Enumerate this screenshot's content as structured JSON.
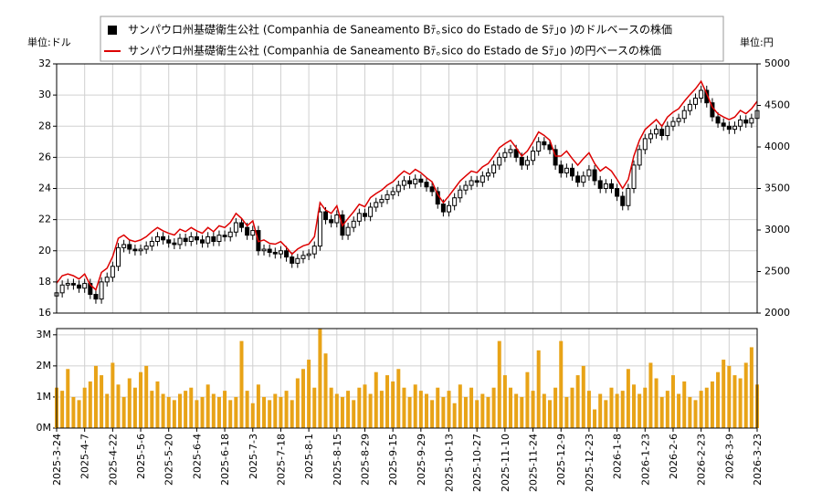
{
  "chart_data": [
    {
      "type": "candlestick",
      "ylabel": "単位:ドル",
      "y2label": "単位:円",
      "ylim": [
        16,
        32
      ],
      "yticks": [
        16,
        18,
        20,
        22,
        24,
        26,
        28,
        30,
        32
      ],
      "y2lim": [
        2000,
        5000
      ],
      "y2ticks": [
        2000,
        2500,
        3000,
        3500,
        4000,
        4500,
        5000
      ],
      "grid": true,
      "series": [
        {
          "name": "サンパウロ州基礎衛生公社 (Companhia de Saneamento Bﾃ｡sico do Estado de Sﾃ｣o )のドルベースの株価",
          "color": "#000000",
          "open": [
            17.1,
            17.3,
            17.8,
            17.9,
            17.8,
            17.6,
            17.9,
            17.2,
            16.9,
            18.0,
            18.3,
            19.0,
            20.2,
            20.4,
            20.1,
            20.0,
            20.1,
            20.3,
            20.6,
            20.9,
            20.7,
            20.5,
            20.4,
            20.8,
            20.6,
            20.9,
            20.7,
            20.5,
            20.9,
            20.6,
            21.0,
            20.9,
            21.2,
            21.8,
            21.5,
            21.0,
            21.3,
            20.0,
            20.1,
            19.9,
            19.8,
            20.0,
            19.6,
            19.2,
            19.5,
            19.7,
            19.8,
            20.3,
            22.5,
            22.0,
            21.8,
            22.3,
            21.0,
            21.5,
            21.9,
            22.4,
            22.2,
            22.8,
            23.1,
            23.3,
            23.6,
            23.8,
            24.2,
            24.5,
            24.3,
            24.6,
            24.4,
            24.1,
            23.8,
            23.0,
            22.5,
            22.9,
            23.4,
            23.9,
            24.2,
            24.5,
            24.4,
            24.8,
            25.0,
            25.5,
            26.0,
            26.3,
            26.5,
            26.0,
            25.5,
            25.8,
            26.4,
            27.0,
            26.8,
            26.5,
            25.5,
            25.0,
            25.3,
            24.8,
            24.4,
            24.8,
            25.2,
            24.5,
            24.0,
            24.3,
            24.0,
            23.5,
            22.9,
            24.0,
            25.5,
            26.5,
            27.2,
            27.5,
            27.8,
            27.4,
            28.0,
            28.3,
            28.5,
            29.0,
            29.4,
            29.8,
            30.3,
            29.5,
            28.6,
            28.2,
            28.0,
            27.8,
            28.0,
            28.4,
            28.2,
            28.5
          ],
          "high": [
            17.6,
            18.1,
            18.2,
            18.2,
            18.1,
            18.2,
            18.2,
            17.5,
            18.3,
            18.6,
            19.3,
            20.5,
            20.7,
            20.7,
            20.4,
            20.4,
            20.6,
            20.9,
            21.2,
            21.2,
            21.0,
            20.8,
            21.1,
            21.1,
            21.2,
            21.2,
            21.0,
            21.2,
            21.2,
            21.3,
            21.3,
            21.5,
            22.1,
            22.1,
            21.8,
            21.6,
            21.6,
            20.4,
            20.4,
            20.2,
            20.3,
            20.3,
            19.9,
            19.8,
            20.0,
            20.1,
            20.6,
            22.8,
            22.8,
            22.3,
            22.6,
            22.6,
            21.8,
            22.2,
            22.7,
            22.7,
            23.1,
            23.4,
            23.6,
            23.9,
            24.1,
            24.5,
            24.8,
            24.8,
            24.9,
            24.9,
            24.7,
            24.4,
            24.1,
            23.3,
            23.2,
            23.7,
            24.2,
            24.5,
            24.8,
            24.8,
            25.1,
            25.3,
            25.8,
            26.3,
            26.6,
            26.8,
            26.8,
            26.3,
            26.1,
            26.7,
            27.3,
            27.3,
            27.1,
            26.8,
            25.8,
            25.6,
            25.6,
            25.1,
            25.1,
            25.5,
            25.5,
            24.8,
            24.6,
            24.6,
            24.3,
            23.8,
            24.3,
            25.8,
            26.8,
            27.5,
            27.8,
            28.1,
            28.1,
            28.3,
            28.6,
            28.8,
            29.3,
            29.7,
            30.1,
            30.6,
            30.6,
            29.8,
            28.9,
            28.5,
            28.3,
            28.3,
            28.7,
            28.7,
            28.8,
            29.3
          ],
          "low": [
            16.8,
            17.0,
            17.5,
            17.5,
            17.3,
            17.3,
            16.9,
            16.6,
            16.6,
            17.7,
            18.0,
            18.7,
            19.9,
            19.8,
            19.7,
            19.7,
            19.8,
            20.0,
            20.3,
            20.4,
            20.2,
            20.1,
            20.1,
            20.3,
            20.3,
            20.4,
            20.2,
            20.2,
            20.3,
            20.3,
            20.6,
            20.6,
            20.9,
            21.2,
            20.7,
            20.7,
            19.7,
            19.7,
            19.6,
            19.5,
            19.5,
            19.3,
            18.9,
            18.9,
            19.2,
            19.4,
            19.5,
            20.0,
            21.7,
            21.5,
            21.5,
            20.7,
            20.7,
            21.2,
            21.6,
            21.9,
            21.9,
            22.5,
            22.8,
            23.0,
            23.3,
            23.5,
            23.9,
            24.0,
            24.0,
            24.1,
            23.8,
            23.5,
            22.7,
            22.2,
            22.2,
            22.6,
            23.1,
            23.6,
            23.9,
            24.1,
            24.1,
            24.5,
            24.7,
            25.2,
            25.7,
            26.0,
            25.7,
            25.2,
            25.2,
            25.5,
            26.1,
            26.5,
            26.2,
            25.2,
            24.7,
            24.7,
            24.5,
            24.1,
            24.1,
            24.5,
            24.2,
            23.7,
            23.7,
            23.7,
            23.2,
            22.6,
            22.6,
            23.7,
            25.2,
            26.2,
            26.9,
            27.2,
            27.1,
            27.1,
            27.7,
            28.0,
            28.2,
            28.7,
            29.1,
            29.5,
            29.2,
            28.3,
            27.9,
            27.7,
            27.5,
            27.5,
            27.7,
            27.9,
            27.9,
            28.2
          ],
          "close": [
            17.3,
            17.8,
            17.9,
            17.8,
            17.6,
            17.9,
            17.2,
            16.9,
            18.0,
            18.3,
            19.0,
            20.2,
            20.4,
            20.1,
            20.0,
            20.1,
            20.3,
            20.6,
            20.9,
            20.7,
            20.5,
            20.4,
            20.8,
            20.6,
            20.9,
            20.7,
            20.5,
            20.9,
            20.6,
            21.0,
            20.9,
            21.2,
            21.8,
            21.5,
            21.0,
            21.3,
            20.0,
            20.1,
            19.9,
            19.8,
            20.0,
            19.6,
            19.2,
            19.5,
            19.7,
            19.8,
            20.3,
            22.5,
            22.0,
            21.8,
            22.3,
            21.0,
            21.5,
            21.9,
            22.4,
            22.2,
            22.8,
            23.1,
            23.3,
            23.6,
            23.8,
            24.2,
            24.5,
            24.3,
            24.6,
            24.4,
            24.1,
            23.8,
            23.0,
            22.5,
            22.9,
            23.4,
            23.9,
            24.2,
            24.5,
            24.4,
            24.8,
            25.0,
            25.5,
            26.0,
            26.3,
            26.5,
            26.0,
            25.5,
            25.8,
            26.4,
            27.0,
            26.8,
            26.5,
            25.5,
            25.0,
            25.3,
            24.8,
            24.4,
            24.8,
            25.2,
            24.5,
            24.0,
            24.3,
            24.0,
            23.5,
            22.9,
            24.0,
            25.5,
            26.5,
            27.2,
            27.5,
            27.8,
            27.4,
            28.0,
            28.3,
            28.5,
            29.0,
            29.4,
            29.8,
            30.3,
            29.5,
            28.6,
            28.2,
            28.0,
            27.8,
            28.0,
            28.4,
            28.2,
            28.5,
            29.0
          ]
        },
        {
          "name": "サンパウロ州基礎衛生公社 (Companhia de Saneamento Bﾃ｡sico do Estado de Sﾃ｣o )の円ベースの株価",
          "color": "#dd0000",
          "axis": "y2",
          "values": [
            2360,
            2450,
            2470,
            2450,
            2410,
            2470,
            2340,
            2280,
            2490,
            2540,
            2680,
            2900,
            2940,
            2880,
            2860,
            2880,
            2920,
            2980,
            3030,
            2990,
            2960,
            2940,
            3010,
            2980,
            3030,
            2990,
            2960,
            3030,
            2980,
            3050,
            3030,
            3090,
            3200,
            3140,
            3050,
            3110,
            2860,
            2880,
            2840,
            2830,
            2860,
            2790,
            2710,
            2770,
            2810,
            2830,
            2920,
            3330,
            3240,
            3200,
            3290,
            3050,
            3140,
            3220,
            3310,
            3280,
            3390,
            3440,
            3480,
            3540,
            3580,
            3650,
            3710,
            3670,
            3730,
            3690,
            3630,
            3580,
            3430,
            3330,
            3410,
            3500,
            3590,
            3650,
            3710,
            3690,
            3760,
            3800,
            3890,
            3990,
            4040,
            4080,
            3990,
            3890,
            3950,
            4060,
            4180,
            4140,
            4080,
            3890,
            3890,
            3950,
            3860,
            3780,
            3860,
            3930,
            3800,
            3710,
            3760,
            3710,
            3610,
            3500,
            3610,
            3890,
            4080,
            4210,
            4270,
            4330,
            4250,
            4360,
            4420,
            4460,
            4550,
            4630,
            4700,
            4790,
            4640,
            4480,
            4400,
            4360,
            4330,
            4360,
            4440,
            4400,
            4460,
            4550
          ]
        }
      ]
    },
    {
      "type": "bar",
      "color": "#e8a317",
      "grid": true,
      "ylim": [
        0,
        3200000
      ],
      "yticks": [
        {
          "value": 0,
          "label": "0M"
        },
        {
          "value": 1000000,
          "label": "1M"
        },
        {
          "value": 2000000,
          "label": "2M"
        },
        {
          "value": 3000000,
          "label": "3M"
        }
      ],
      "categories": [
        "2025-3-24",
        null,
        null,
        null,
        null,
        "2025-4-7",
        null,
        null,
        null,
        null,
        "2025-4-22",
        null,
        null,
        null,
        null,
        "2025-5-6",
        null,
        null,
        null,
        null,
        "2025-5-20",
        null,
        null,
        null,
        null,
        "2025-6-4",
        null,
        null,
        null,
        null,
        "2025-6-18",
        null,
        null,
        null,
        null,
        "2025-7-3",
        null,
        null,
        null,
        null,
        "2025-7-18",
        null,
        null,
        null,
        null,
        "2025-8-1",
        null,
        null,
        null,
        null,
        "2025-8-15",
        null,
        null,
        null,
        null,
        "2025-8-29",
        null,
        null,
        null,
        null,
        "2025-9-15",
        null,
        null,
        null,
        null,
        "2025-9-29",
        null,
        null,
        null,
        null,
        "2025-10-13",
        null,
        null,
        null,
        null,
        "2025-10-27",
        null,
        null,
        null,
        null,
        "2025-11-10",
        null,
        null,
        null,
        null,
        "2025-11-24",
        null,
        null,
        null,
        null,
        "2025-12-9",
        null,
        null,
        null,
        null,
        "2025-12-23",
        null,
        null,
        null,
        null,
        "2026-1-8",
        null,
        null,
        null,
        null,
        "2026-1-23",
        null,
        null,
        null,
        null,
        "2026-2-6",
        null,
        null,
        null,
        null,
        "2026-2-23",
        null,
        null,
        null,
        null,
        "2026-3-9",
        null,
        null,
        null,
        null,
        "2026-3-23"
      ],
      "values": [
        1300000,
        1200000,
        1900000,
        1000000,
        900000,
        1300000,
        1500000,
        2000000,
        1700000,
        1100000,
        2100000,
        1400000,
        1000000,
        1600000,
        1300000,
        1800000,
        2000000,
        1200000,
        1500000,
        1100000,
        1000000,
        900000,
        1100000,
        1200000,
        1300000,
        900000,
        1000000,
        1400000,
        1100000,
        1000000,
        1200000,
        900000,
        1000000,
        2800000,
        1200000,
        800000,
        1400000,
        1000000,
        900000,
        1100000,
        1000000,
        1200000,
        900000,
        1600000,
        1900000,
        2200000,
        1300000,
        3200000,
        2400000,
        1300000,
        1100000,
        1000000,
        1200000,
        900000,
        1300000,
        1400000,
        1100000,
        1800000,
        1200000,
        1700000,
        1500000,
        1900000,
        1300000,
        1000000,
        1400000,
        1200000,
        1100000,
        900000,
        1300000,
        1000000,
        1200000,
        800000,
        1400000,
        1000000,
        1300000,
        900000,
        1100000,
        1000000,
        1300000,
        2800000,
        1700000,
        1300000,
        1100000,
        1000000,
        1800000,
        1200000,
        2500000,
        1100000,
        900000,
        1300000,
        2800000,
        1000000,
        1300000,
        1700000,
        2000000,
        1200000,
        600000,
        1100000,
        900000,
        1300000,
        1100000,
        1200000,
        1900000,
        1400000,
        1100000,
        1300000,
        2100000,
        1600000,
        1000000,
        1200000,
        1700000,
        1100000,
        1500000,
        1000000,
        900000,
        1200000,
        1300000,
        1500000,
        1800000,
        2200000,
        2000000,
        1700000,
        1600000,
        2100000,
        2600000,
        1400000
      ]
    }
  ]
}
